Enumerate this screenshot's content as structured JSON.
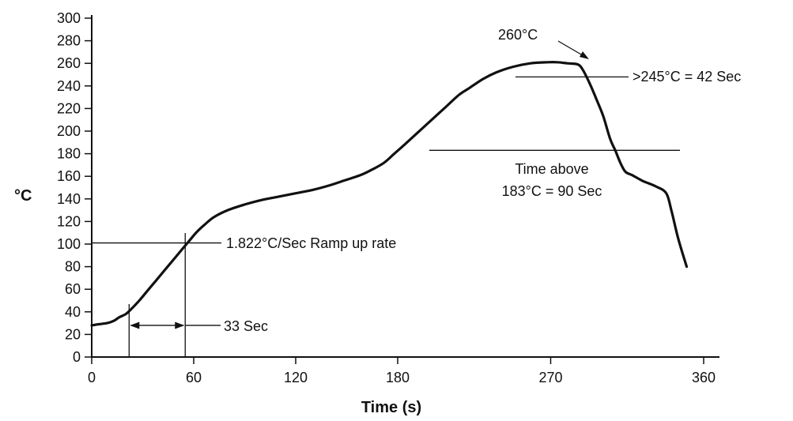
{
  "chart_data": {
    "type": "line",
    "title": "",
    "xlabel": "Time (s)",
    "ylabel": "°C",
    "xlim": [
      0,
      360
    ],
    "ylim": [
      0,
      300
    ],
    "x_ticks": [
      0,
      60,
      120,
      180,
      270,
      360
    ],
    "y_ticks": [
      0,
      20,
      40,
      60,
      80,
      100,
      120,
      140,
      160,
      180,
      200,
      220,
      240,
      260,
      280,
      300
    ],
    "grid": false,
    "series": [
      {
        "x": [
          0,
          4,
          9,
          13,
          16,
          20,
          23,
          28,
          33,
          38,
          43,
          48,
          53,
          58,
          62,
          67,
          72,
          80,
          90,
          100,
          110,
          120,
          130,
          140,
          148,
          158,
          165,
          172,
          178,
          184,
          192,
          200,
          208,
          216,
          222,
          230,
          238,
          248,
          258,
          268,
          274,
          280,
          286,
          289,
          293,
          297,
          301,
          305,
          308,
          311,
          314,
          318,
          324,
          332,
          338,
          341,
          345,
          350
        ],
        "y": [
          28,
          29,
          30,
          32,
          35,
          38,
          42,
          50,
          59,
          68,
          77,
          86,
          95,
          104,
          111,
          118,
          124,
          130,
          135,
          139,
          142,
          145,
          148,
          152,
          156,
          161,
          166,
          172,
          180,
          188,
          199,
          210,
          221,
          232,
          238,
          246,
          252,
          257,
          260,
          261,
          261,
          260,
          259,
          254,
          242,
          228,
          213,
          193,
          183,
          172,
          164,
          161,
          156,
          151,
          145,
          130,
          105,
          80
        ]
      }
    ],
    "annotations": {
      "peak": "260°C",
      "above245": ">245°C = 42 Sec",
      "above183_line1": "Time above",
      "above183_line2": "183°C = 90 Sec",
      "ramp": "1.822°C/Sec Ramp up rate",
      "duration": "33 Sec"
    },
    "annotation_levels": {
      "line_245": 248,
      "line_183": 183,
      "line_100": 101,
      "ramp_start_time": 22,
      "ramp_end_time": 55,
      "ramp_arrow_temp": 28
    }
  }
}
